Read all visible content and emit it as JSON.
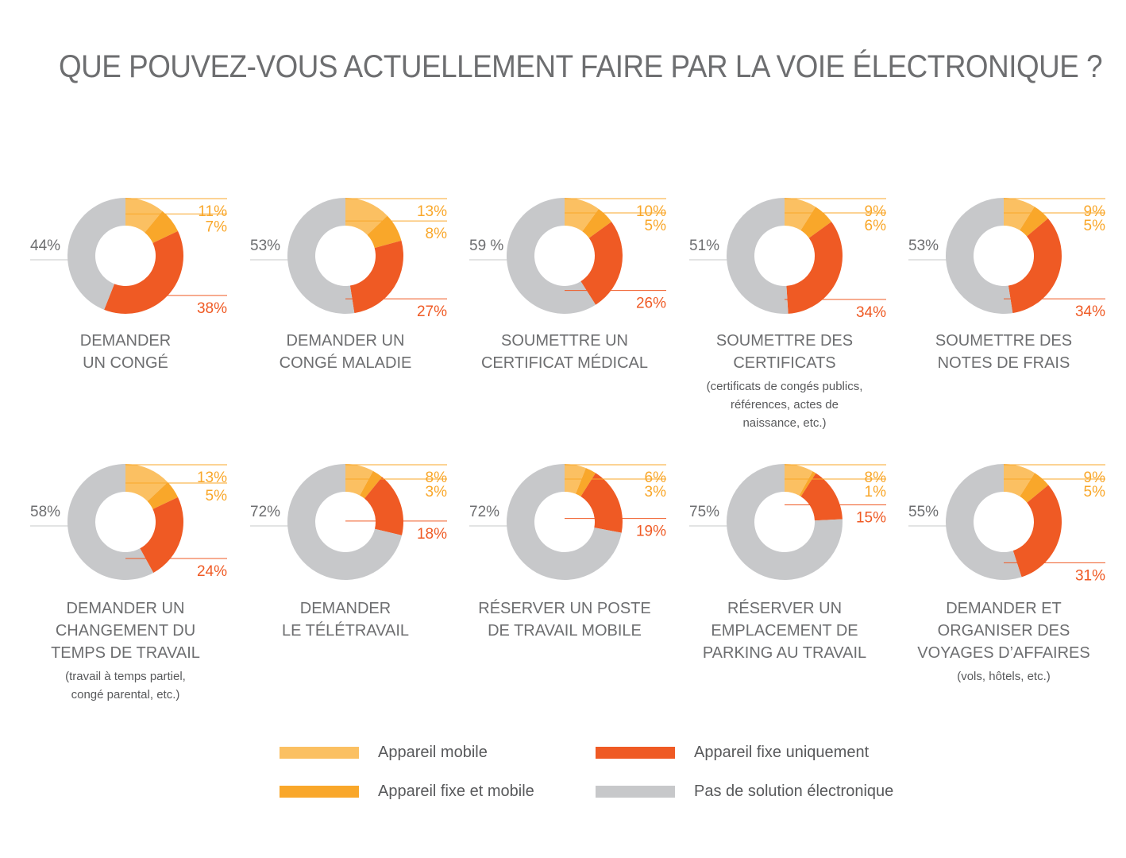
{
  "title": "QUE POUVEZ-VOUS ACTUELLEMENT FAIRE PAR LA VOIE ÉLECTRONIQUE ?",
  "colors": {
    "mobile": "#fbc062",
    "both": "#f9a72a",
    "fixed": "#ef5a24",
    "none": "#c7c8ca",
    "orange_text": "#f9a72a",
    "red_text": "#ef5a24",
    "grey_text": "#6d6e70"
  },
  "legend": [
    {
      "label": "Appareil mobile",
      "color": "#fbc062"
    },
    {
      "label": "Appareil fixe uniquement",
      "color": "#ef5a24"
    },
    {
      "label": "Appareil fixe et mobile",
      "color": "#f9a72a"
    },
    {
      "label": "Pas de solution électronique",
      "color": "#c7c8ca"
    }
  ],
  "chart_data": [
    {
      "type": "pie",
      "title": "DEMANDER\nUN CONGÉ",
      "subtitle": "",
      "labels": [
        "Appareil mobile",
        "Appareil fixe et mobile",
        "Appareil fixe uniquement",
        "Pas de solution électronique"
      ],
      "values": [
        11,
        7,
        38,
        44
      ],
      "value_labels": [
        "11%",
        "7%",
        "38%",
        "44%"
      ]
    },
    {
      "type": "pie",
      "title": "DEMANDER UN\nCONGÉ MALADIE",
      "subtitle": "",
      "labels": [
        "Appareil mobile",
        "Appareil fixe et mobile",
        "Appareil fixe uniquement",
        "Pas de solution électronique"
      ],
      "values": [
        13,
        8,
        27,
        53
      ],
      "value_labels": [
        "13%",
        "8%",
        "27%",
        "53%"
      ]
    },
    {
      "type": "pie",
      "title": "SOUMETTRE UN\nCERTIFICAT MÉDICAL",
      "subtitle": "",
      "labels": [
        "Appareil mobile",
        "Appareil fixe et mobile",
        "Appareil fixe uniquement",
        "Pas de solution électronique"
      ],
      "values": [
        10,
        5,
        26,
        59
      ],
      "value_labels": [
        "10%",
        "5%",
        "26%",
        "59 %"
      ]
    },
    {
      "type": "pie",
      "title": "SOUMETTRE DES\nCERTIFICATS",
      "subtitle": "(certificats de congés publics,\nréférences, actes de\nnaissance, etc.)",
      "labels": [
        "Appareil mobile",
        "Appareil fixe et mobile",
        "Appareil fixe uniquement",
        "Pas de solution électronique"
      ],
      "values": [
        9,
        6,
        34,
        51
      ],
      "value_labels": [
        "9%",
        "6%",
        "34%",
        "51%"
      ]
    },
    {
      "type": "pie",
      "title": "SOUMETTRE DES\nNOTES DE FRAIS",
      "subtitle": "",
      "labels": [
        "Appareil mobile",
        "Appareil fixe et mobile",
        "Appareil fixe uniquement",
        "Pas de solution électronique"
      ],
      "values": [
        9,
        5,
        34,
        53
      ],
      "value_labels": [
        "9%",
        "5%",
        "34%",
        "53%"
      ]
    },
    {
      "type": "pie",
      "title": "DEMANDER UN\nCHANGEMENT DU\nTEMPS DE TRAVAIL",
      "subtitle": "(travail à temps partiel,\ncongé parental, etc.)",
      "labels": [
        "Appareil mobile",
        "Appareil fixe et mobile",
        "Appareil fixe uniquement",
        "Pas de solution électronique"
      ],
      "values": [
        13,
        5,
        24,
        58
      ],
      "value_labels": [
        "13%",
        "5%",
        "24%",
        "58%"
      ]
    },
    {
      "type": "pie",
      "title": "DEMANDER\nLE TÉLÉTRAVAIL",
      "subtitle": "",
      "labels": [
        "Appareil mobile",
        "Appareil fixe et mobile",
        "Appareil fixe uniquement",
        "Pas de solution électronique"
      ],
      "values": [
        8,
        3,
        18,
        72
      ],
      "value_labels": [
        "8%",
        "3%",
        "18%",
        "72%"
      ]
    },
    {
      "type": "pie",
      "title": "RÉSERVER UN POSTE\nDE TRAVAIL MOBILE",
      "subtitle": "",
      "labels": [
        "Appareil mobile",
        "Appareil fixe et mobile",
        "Appareil fixe uniquement",
        "Pas de solution électronique"
      ],
      "values": [
        6,
        3,
        19,
        72
      ],
      "value_labels": [
        "6%",
        "3%",
        "19%",
        "72%"
      ]
    },
    {
      "type": "pie",
      "title": "RÉSERVER UN\nEMPLACEMENT DE\nPARKING AU TRAVAIL",
      "subtitle": "",
      "labels": [
        "Appareil mobile",
        "Appareil fixe et mobile",
        "Appareil fixe uniquement",
        "Pas de solution électronique"
      ],
      "values": [
        8,
        1,
        15,
        75
      ],
      "value_labels": [
        "8%",
        "1%",
        "15%",
        "75%"
      ]
    },
    {
      "type": "pie",
      "title": "DEMANDER ET\nORGANISER DES\nVOYAGES D’AFFAIRES",
      "subtitle": "(vols, hôtels, etc.)",
      "labels": [
        "Appareil mobile",
        "Appareil fixe et mobile",
        "Appareil fixe uniquement",
        "Pas de solution électronique"
      ],
      "values": [
        9,
        5,
        31,
        55
      ],
      "value_labels": [
        "9%",
        "5%",
        "31%",
        "55%"
      ]
    }
  ]
}
